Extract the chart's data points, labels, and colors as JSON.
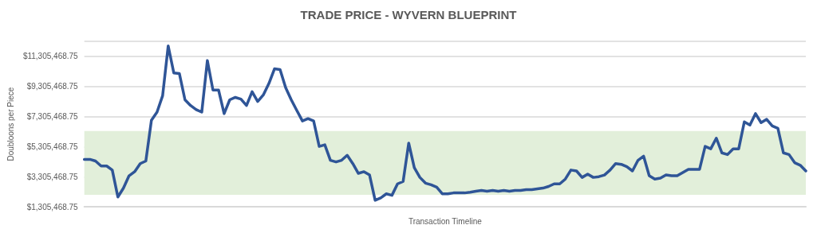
{
  "chart_data": {
    "type": "line",
    "title": "TRADE PRICE - WYVERN BLUEPRINT",
    "xlabel": "Transaction Timeline",
    "ylabel": "Doubloons per Piece",
    "categories": [
      null,
      null,
      null,
      null,
      null,
      null,
      null,
      null,
      null,
      null,
      null,
      null,
      null,
      null,
      null,
      null,
      null,
      null,
      null,
      null,
      null,
      null,
      null,
      null,
      null,
      null,
      null,
      null,
      null,
      null,
      null,
      null,
      null,
      null,
      null,
      null,
      null,
      null,
      null,
      null,
      null,
      null,
      null,
      null,
      null,
      null,
      null,
      null,
      null,
      null,
      null,
      null,
      null,
      null,
      null,
      null,
      null,
      null,
      null,
      null,
      null,
      null,
      null,
      null,
      null,
      null,
      null,
      null,
      null,
      null,
      null,
      null,
      null,
      null,
      null,
      null,
      null,
      null,
      null,
      null,
      null,
      null,
      null,
      null,
      null,
      null,
      null,
      null,
      null,
      null,
      null,
      null,
      null,
      null,
      null,
      null,
      null,
      null,
      null,
      null,
      null,
      null,
      null,
      null,
      null,
      null,
      null,
      null,
      null,
      null,
      null,
      null,
      null,
      null,
      null,
      null,
      null,
      null,
      null,
      null,
      null,
      null,
      null,
      null,
      null,
      null,
      null,
      null,
      null,
      null
    ],
    "series": [
      {
        "color": "#2f5597",
        "values": [
          4460000,
          4460000,
          4350000,
          4020000,
          4020000,
          3750000,
          1960000,
          2550000,
          3370000,
          3640000,
          4180000,
          4350000,
          7060000,
          7600000,
          8690000,
          12000000,
          10210000,
          10160000,
          8420000,
          8040000,
          7770000,
          7600000,
          11030000,
          9070000,
          9070000,
          7500000,
          8420000,
          8580000,
          8470000,
          8040000,
          8960000,
          8310000,
          8740000,
          9500000,
          10480000,
          10430000,
          9230000,
          8420000,
          7710000,
          7010000,
          7170000,
          7010000,
          5320000,
          5430000,
          4400000,
          4290000,
          4400000,
          4730000,
          4180000,
          3530000,
          3640000,
          3420000,
          1740000,
          1900000,
          2170000,
          2070000,
          2830000,
          2990000,
          5540000,
          3910000,
          3260000,
          2880000,
          2770000,
          2610000,
          2170000,
          2170000,
          2230000,
          2230000,
          2230000,
          2280000,
          2340000,
          2390000,
          2340000,
          2390000,
          2340000,
          2390000,
          2340000,
          2390000,
          2390000,
          2450000,
          2450000,
          2500000,
          2550000,
          2660000,
          2830000,
          2830000,
          3150000,
          3750000,
          3690000,
          3260000,
          3480000,
          3260000,
          3310000,
          3420000,
          3750000,
          4180000,
          4130000,
          3970000,
          3690000,
          4400000,
          4670000,
          3370000,
          3150000,
          3210000,
          3420000,
          3370000,
          3370000,
          3590000,
          3800000,
          3800000,
          3800000,
          5320000,
          5160000,
          5870000,
          4890000,
          4780000,
          5160000,
          5160000,
          6950000,
          6740000,
          7500000,
          6900000,
          7120000,
          6680000,
          6520000,
          4890000,
          4780000,
          4240000,
          4070000,
          3690000
        ]
      }
    ],
    "ylim": [
      1305468.75,
      12305468.75
    ],
    "yticks": [
      {
        "value": 1305468.75,
        "label": "$1,305,468.75"
      },
      {
        "value": 3305468.75,
        "label": "$3,305,468.75"
      },
      {
        "value": 5305468.75,
        "label": "$5,305,468.75"
      },
      {
        "value": 7305468.75,
        "label": "$7,305,468.75"
      },
      {
        "value": 9305468.75,
        "label": "$9,305,468.75"
      },
      {
        "value": 11305468.75,
        "label": "$11,305,468.75"
      },
      {
        "value": 12305468.75,
        "label": null
      }
    ],
    "bands": [
      {
        "axis": "y",
        "from": 2100000,
        "to": 6350000,
        "color": "#e2efda"
      }
    ],
    "grid": "y",
    "marker": "none",
    "line_style": "solid"
  }
}
